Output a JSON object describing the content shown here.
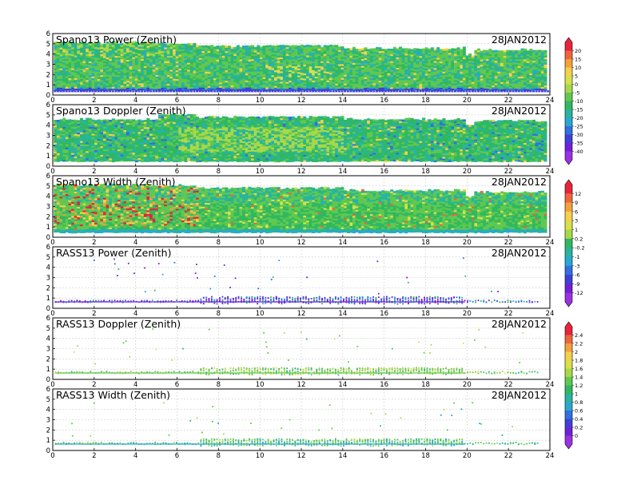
{
  "chart_data": [
    {
      "type": "heatmap",
      "title": "Spano13 Power (Zenith)",
      "date": "28JAN2012",
      "x_ticks": [
        "0",
        "2",
        "4",
        "6",
        "8",
        "10",
        "12",
        "14",
        "16",
        "18",
        "20",
        "22",
        "24"
      ],
      "y_ticks": [
        "0",
        "1",
        "2",
        "3",
        "4",
        "5",
        "6"
      ],
      "xlim": [
        0,
        24
      ],
      "ylim": [
        0,
        6
      ],
      "colorbar": [
        "20",
        "15",
        "10",
        "5",
        "0",
        "-5",
        "-10",
        "-15",
        "-20",
        "-25",
        "-30",
        "-35",
        "-40"
      ]
    },
    {
      "type": "heatmap",
      "title": "Spano13 Doppler (Zenith)",
      "date": "28JAN2012",
      "x_ticks": [
        "0",
        "2",
        "4",
        "6",
        "8",
        "10",
        "12",
        "14",
        "16",
        "18",
        "20",
        "22",
        "24"
      ],
      "y_ticks": [
        "0",
        "1",
        "2",
        "3",
        "4",
        "5",
        "6"
      ],
      "xlim": [
        0,
        24
      ],
      "ylim": [
        0,
        6
      ]
    },
    {
      "type": "heatmap",
      "title": "Spano13 Width (Zenith)",
      "date": "28JAN2012",
      "x_ticks": [
        "0",
        "2",
        "4",
        "6",
        "8",
        "10",
        "12",
        "14",
        "16",
        "18",
        "20",
        "22",
        "24"
      ],
      "y_ticks": [
        "0",
        "1",
        "2",
        "3",
        "4",
        "5",
        "6"
      ],
      "xlim": [
        0,
        24
      ],
      "ylim": [
        0,
        6
      ],
      "colorbar": [
        "12",
        "9",
        "6",
        "3",
        "1",
        "0.2",
        "-0.2",
        "-1",
        "-3",
        "-6",
        "-9",
        "-12"
      ]
    },
    {
      "type": "scatter",
      "title": "RASS13 Power (Zenith)",
      "date": "28JAN2012",
      "x_ticks": [
        "0",
        "2",
        "4",
        "6",
        "8",
        "10",
        "12",
        "14",
        "16",
        "18",
        "20",
        "22",
        "24"
      ],
      "y_ticks": [
        "0",
        "1",
        "2",
        "3",
        "4",
        "5",
        "6"
      ],
      "xlim": [
        0,
        24
      ],
      "ylim": [
        0,
        6
      ]
    },
    {
      "type": "scatter",
      "title": "RASS13 Doppler (Zenith)",
      "date": "28JAN2012",
      "x_ticks": [
        "0",
        "2",
        "4",
        "6",
        "8",
        "10",
        "12",
        "14",
        "16",
        "18",
        "20",
        "22",
        "24"
      ],
      "y_ticks": [
        "0",
        "1",
        "2",
        "3",
        "4",
        "5",
        "6"
      ],
      "xlim": [
        0,
        24
      ],
      "ylim": [
        0,
        6
      ],
      "colorbar": [
        "2.4",
        "2.2",
        "2",
        "1.8",
        "1.6",
        "1.4",
        "1.2",
        "1",
        "0.8",
        "0.6",
        "0.4",
        "0.2",
        "0"
      ]
    },
    {
      "type": "scatter",
      "title": "RASS13 Width (Zenith)",
      "date": "28JAN2012",
      "x_ticks": [
        "0",
        "2",
        "4",
        "6",
        "8",
        "10",
        "12",
        "14",
        "16",
        "18",
        "20",
        "22",
        "24"
      ],
      "y_ticks": [
        "0",
        "1",
        "2",
        "3",
        "4",
        "5",
        "6"
      ],
      "xlim": [
        0,
        24
      ],
      "ylim": [
        0,
        6
      ]
    }
  ],
  "palette": [
    "#e8243c",
    "#f0643c",
    "#f4a03c",
    "#f4d04c",
    "#d8e048",
    "#a8d848",
    "#60c850",
    "#30b860",
    "#28b4a0",
    "#28a8d0",
    "#3070e0",
    "#4040d8",
    "#7020d8",
    "#9a30e0"
  ]
}
